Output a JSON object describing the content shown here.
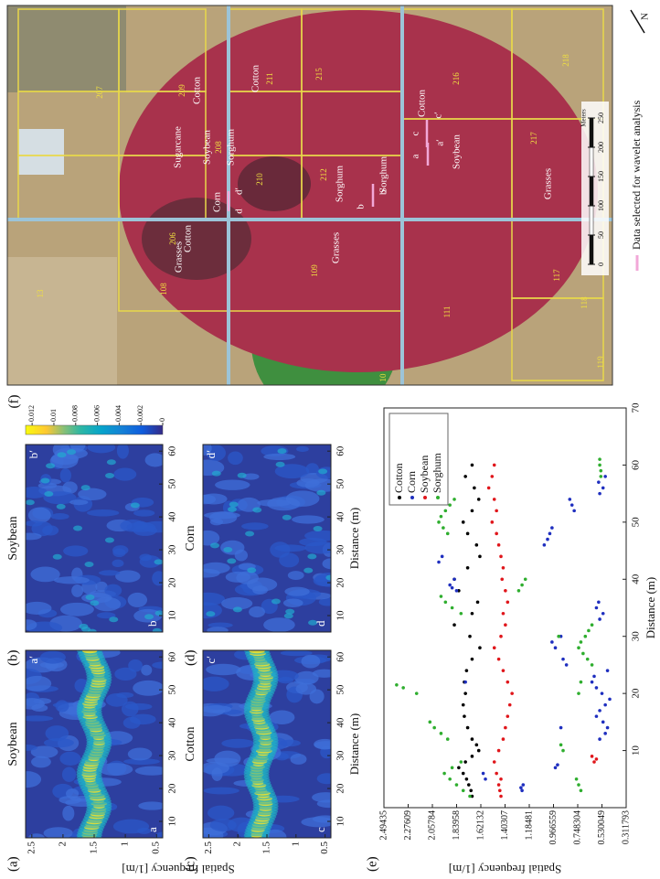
{
  "chart_data": [
    {
      "type": "heatmap",
      "label": "(a)",
      "title": "Soybean",
      "marks": [
        "a",
        "a′"
      ],
      "xlim": [
        5,
        62
      ],
      "ylim": [
        0.4,
        2.6
      ],
      "xticks": [
        10,
        20,
        30,
        40,
        50,
        60
      ],
      "yticks": [
        2.5,
        2,
        1.5,
        1,
        0.5
      ],
      "ylabel": "Spatial frequency [1/m]"
    },
    {
      "type": "heatmap",
      "label": "(b)",
      "title": "Soybean",
      "marks": [
        "b",
        "b′"
      ],
      "xlim": [
        5,
        62
      ],
      "ylim": [
        0.4,
        2.6
      ],
      "xticks": [
        10,
        20,
        30,
        40,
        50,
        60
      ],
      "colorbar": {
        "lim": [
          0,
          0.0126
        ],
        "ticks": [
          0.012,
          0.01,
          0.008,
          0.006,
          0.004,
          0.002,
          0
        ]
      }
    },
    {
      "type": "heatmap",
      "label": "(c)",
      "title": "Cotton",
      "marks": [
        "c",
        "c′"
      ],
      "xlim": [
        5,
        62
      ],
      "ylim": [
        0.4,
        2.6
      ],
      "xticks": [
        10,
        20,
        30,
        40,
        50,
        60
      ],
      "yticks": [
        2.5,
        2,
        1.5,
        1,
        0.5
      ],
      "xlabel": "Distance (m)"
    },
    {
      "type": "heatmap",
      "label": "(d)",
      "title": "Corn",
      "marks": [
        "d",
        "d′"
      ],
      "xlim": [
        5,
        62
      ],
      "ylim": [
        0.4,
        2.6
      ],
      "xticks": [
        10,
        20,
        30,
        40,
        50,
        60
      ],
      "xlabel": "Distance (m)"
    },
    {
      "type": "scatter",
      "label": "(e)",
      "xlabel": "Distance (m)",
      "ylabel": "Spatial frequency [1/m]",
      "xlim": [
        0,
        70
      ],
      "ylim": [
        0.311793,
        2.49435
      ],
      "xticks": [
        10,
        20,
        30,
        40,
        50,
        60,
        70
      ],
      "yticks": [
        2.49435,
        2.27609,
        2.05784,
        1.83958,
        1.62132,
        1.40307,
        1.18481,
        0.966559,
        0.748304,
        0.530049,
        0.311793
      ],
      "legend": "upper right",
      "series": [
        {
          "name": "Cotton",
          "color": "#000000",
          "x": [
            2,
            3,
            4,
            5,
            6,
            7,
            8,
            9,
            10,
            11,
            12,
            14,
            16,
            18,
            20,
            22,
            24,
            26,
            28,
            30,
            32,
            34,
            36,
            38,
            40,
            42,
            44,
            46,
            48,
            50,
            52,
            54,
            56,
            58,
            60
          ],
          "values": [
            1.7,
            1.71,
            1.73,
            1.75,
            1.78,
            1.82,
            1.76,
            1.7,
            1.64,
            1.66,
            1.7,
            1.74,
            1.77,
            1.78,
            1.76,
            1.77,
            1.75,
            1.7,
            1.63,
            1.72,
            1.86,
            1.7,
            1.65,
            1.82,
            1.86,
            1.74,
            1.63,
            1.66,
            1.74,
            1.78,
            1.7,
            1.64,
            1.68,
            1.76,
            1.7
          ]
        },
        {
          "name": "Corn",
          "color": "#1f2fbf",
          "x": [
            3,
            3.5,
            4,
            5,
            6,
            7,
            7.5,
            12,
            13,
            14,
            15,
            16,
            17,
            18,
            19,
            20,
            21,
            22,
            23,
            24,
            22,
            14,
            25,
            26,
            28,
            29,
            30,
            33,
            34,
            35,
            36,
            38,
            38.5,
            39,
            40,
            43,
            44,
            46,
            47,
            48,
            49,
            52,
            53,
            54,
            55,
            56,
            57,
            58
          ],
          "values": [
            1.25,
            1.26,
            1.24,
            1.58,
            1.6,
            0.95,
            0.93,
            0.55,
            0.5,
            0.48,
            0.52,
            0.58,
            0.55,
            0.5,
            0.46,
            0.53,
            0.58,
            0.62,
            0.6,
            0.48,
            1.76,
            0.9,
            0.85,
            0.88,
            0.95,
            0.98,
            0.9,
            0.55,
            0.52,
            0.58,
            0.56,
            1.84,
            1.88,
            1.9,
            1.86,
            2.0,
            1.97,
            1.05,
            1.02,
            1.0,
            0.98,
            0.78,
            0.8,
            0.82,
            0.55,
            0.52,
            0.56,
            0.5
          ]
        },
        {
          "name": "Soybean",
          "color": "#e0161b",
          "x": [
            2,
            3,
            4,
            5,
            6,
            8,
            10,
            12,
            14,
            16,
            18,
            20,
            22,
            24,
            26,
            28,
            30,
            32,
            34,
            36,
            38,
            40,
            42,
            44,
            46,
            48,
            50,
            52,
            54,
            56,
            58,
            60,
            8,
            8.5,
            9
          ],
          "values": [
            1.44,
            1.45,
            1.46,
            1.44,
            1.48,
            1.5,
            1.46,
            1.42,
            1.4,
            1.38,
            1.36,
            1.34,
            1.38,
            1.42,
            1.46,
            1.5,
            1.44,
            1.4,
            1.42,
            1.38,
            1.4,
            1.43,
            1.42,
            1.44,
            1.46,
            1.48,
            1.52,
            1.48,
            1.5,
            1.55,
            1.52,
            1.5,
            0.6,
            0.58,
            0.62
          ]
        },
        {
          "name": "Sorghum",
          "color": "#2fae2f",
          "x": [
            2,
            3,
            4,
            5,
            6,
            7,
            8,
            3,
            4,
            5,
            10,
            11,
            12,
            13,
            14,
            15,
            20,
            21,
            21.5,
            20,
            22,
            25,
            26,
            27,
            28,
            29,
            30,
            31,
            32,
            30,
            34,
            35,
            36,
            37,
            38,
            39,
            40,
            48,
            49,
            50,
            51,
            52,
            53,
            54,
            58,
            59,
            60,
            61
          ],
          "values": [
            1.72,
            1.78,
            1.84,
            1.9,
            1.95,
            1.88,
            1.8,
            0.72,
            0.74,
            0.76,
            0.88,
            0.9,
            1.92,
            1.98,
            2.04,
            2.08,
            2.2,
            2.32,
            2.38,
            0.74,
            0.72,
            0.62,
            0.66,
            0.7,
            0.74,
            0.72,
            0.68,
            0.65,
            0.62,
            0.92,
            1.8,
            1.88,
            1.94,
            1.98,
            1.28,
            1.25,
            1.22,
            1.92,
            1.96,
            2.0,
            1.98,
            1.94,
            1.9,
            1.86,
            0.54,
            0.54,
            0.55,
            0.55
          ]
        }
      ]
    }
  ],
  "map": {
    "label": "(f)",
    "north": "N",
    "legend": "Data selected for wavelet analysis",
    "scale": {
      "unit": "Meters",
      "ticks": [
        0,
        50,
        100,
        150,
        200,
        250
      ]
    },
    "labels": [
      "207",
      "209",
      "Cotton",
      "Cotton",
      "211",
      "215",
      "206",
      "Cotton",
      "Sugarcane",
      "Soybean",
      "208",
      "Sorghum",
      "Corn",
      "210",
      "d",
      "d′",
      "212",
      "Sorghum",
      "b",
      "b′",
      "Sorghum",
      "c",
      "c′",
      "Cotton",
      "a",
      "a′",
      "Soybean",
      "216",
      "217",
      "Grasses",
      "218",
      "108",
      "Grasses",
      "109",
      "Grasses",
      "111",
      "117",
      "118",
      "119",
      "10",
      "13"
    ]
  }
}
